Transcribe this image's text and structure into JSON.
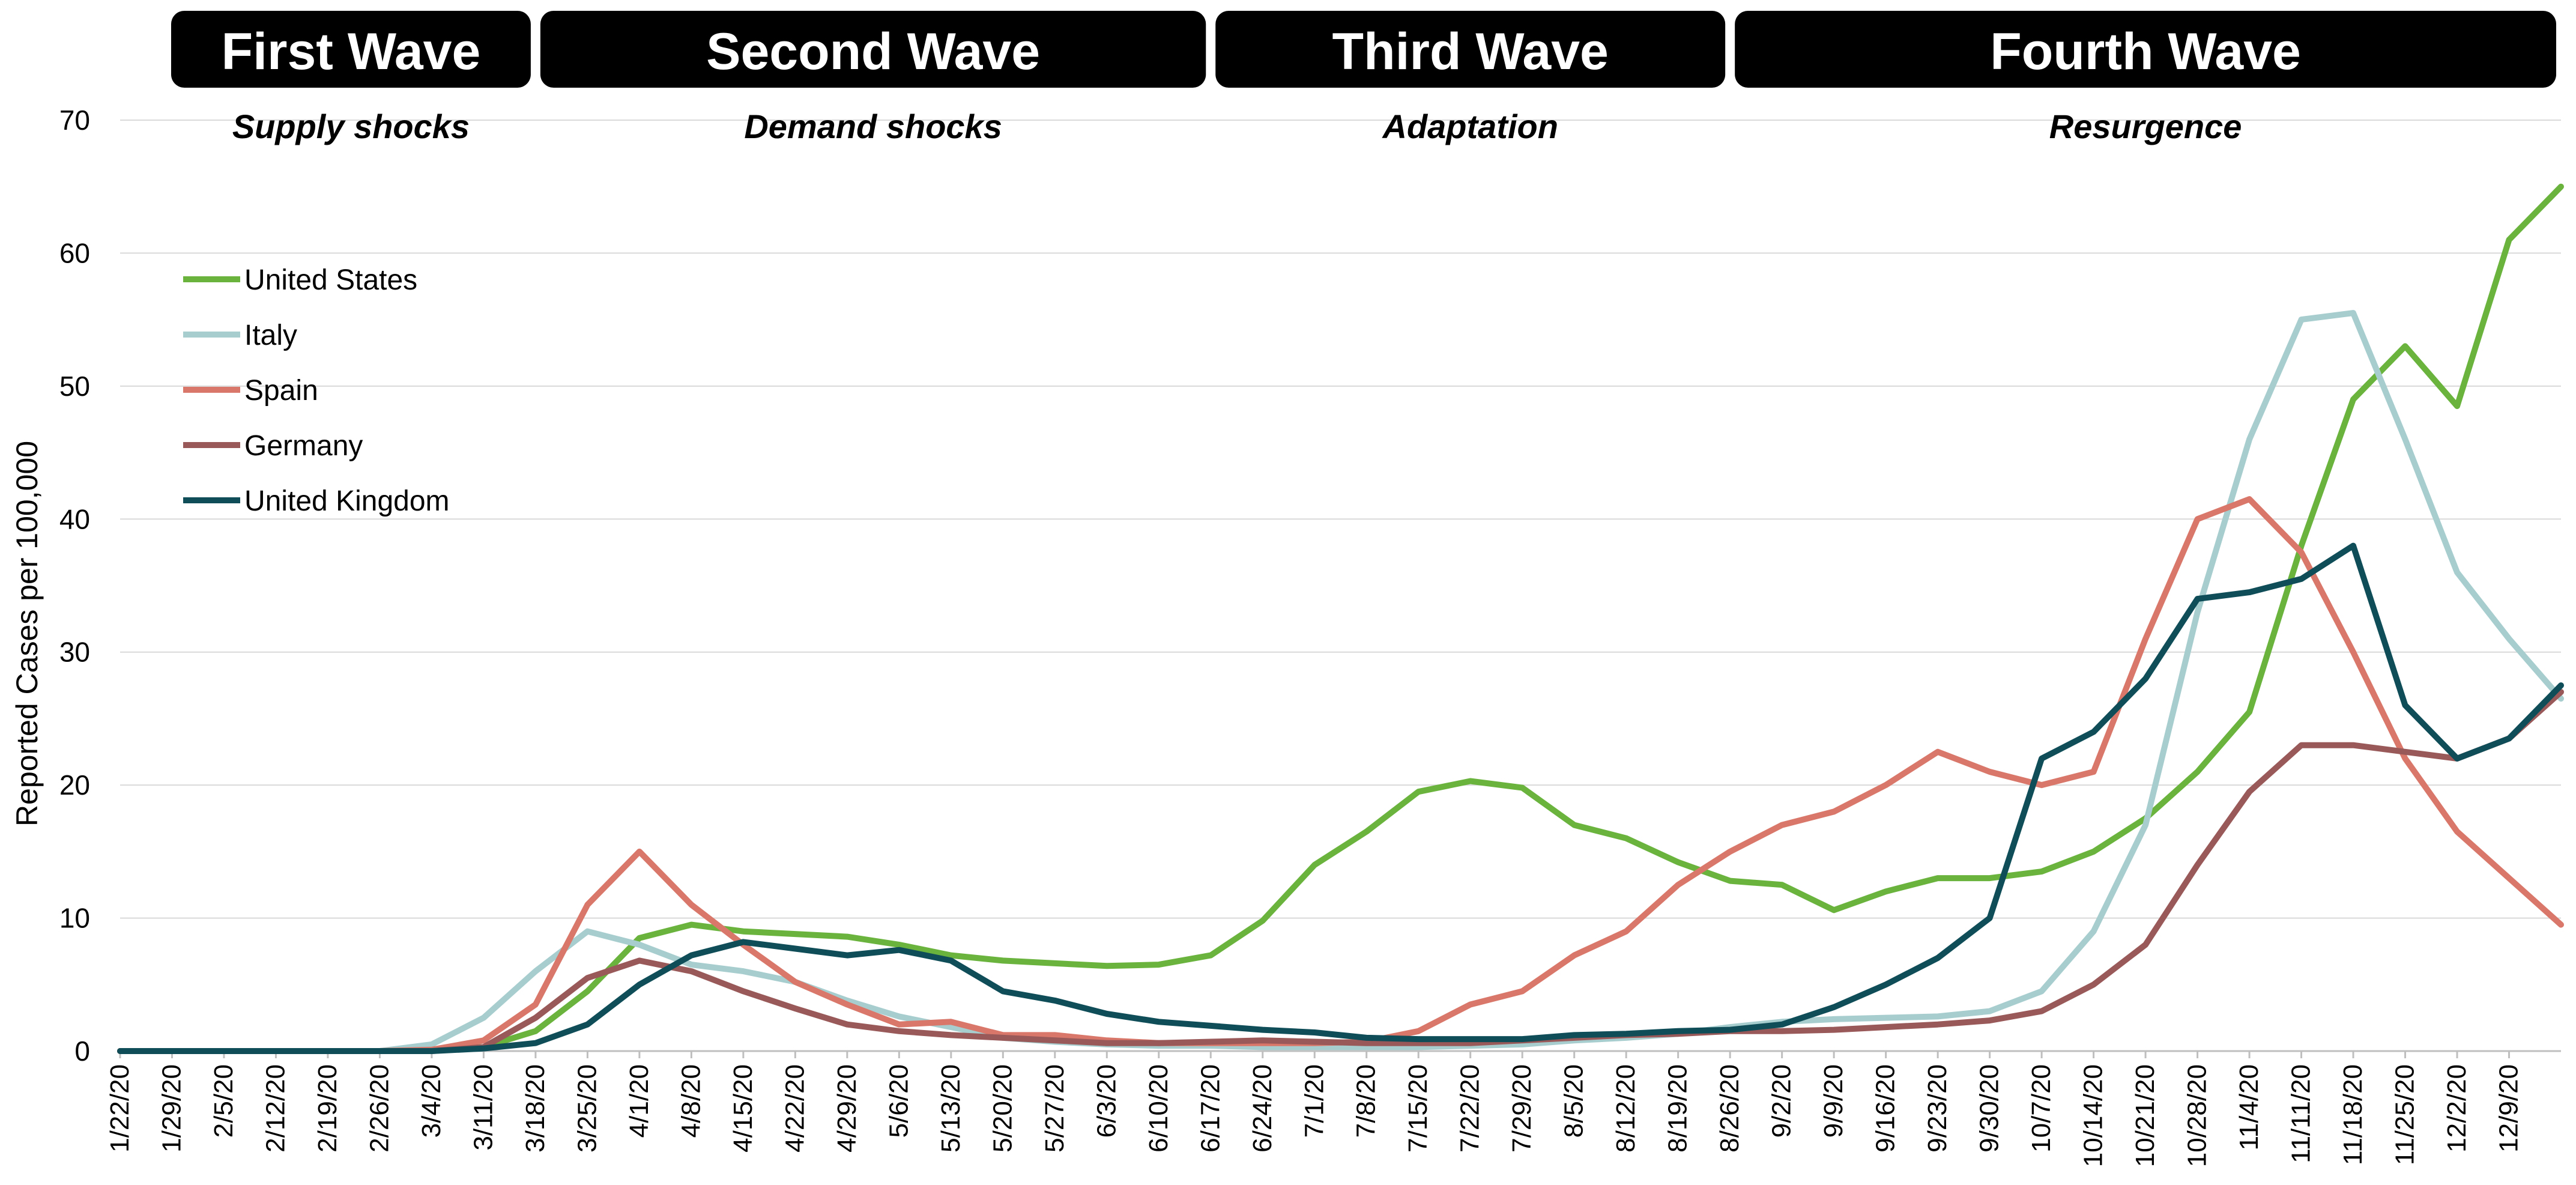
{
  "chart_data": {
    "type": "line",
    "title": "",
    "xlabel": "",
    "ylabel": "Reported Cases per 100,000",
    "ylim": [
      0,
      70
    ],
    "yticks": [
      0,
      10,
      20,
      30,
      40,
      50,
      60,
      70
    ],
    "grid": true,
    "legend_position": "top-left",
    "x": [
      "1/22/20",
      "1/29/20",
      "2/5/20",
      "2/12/20",
      "2/19/20",
      "2/26/20",
      "3/4/20",
      "3/11/20",
      "3/18/20",
      "3/25/20",
      "4/1/20",
      "4/8/20",
      "4/15/20",
      "4/22/20",
      "4/29/20",
      "5/6/20",
      "5/13/20",
      "5/20/20",
      "5/27/20",
      "6/3/20",
      "6/10/20",
      "6/17/20",
      "6/24/20",
      "7/1/20",
      "7/8/20",
      "7/15/20",
      "7/22/20",
      "7/29/20",
      "8/5/20",
      "8/12/20",
      "8/19/20",
      "8/26/20",
      "9/2/20",
      "9/9/20",
      "9/16/20",
      "9/23/20",
      "9/30/20",
      "10/7/20",
      "10/14/20",
      "10/21/20",
      "10/28/20",
      "11/4/20",
      "11/11/20",
      "11/18/20",
      "11/25/20",
      "12/2/20",
      "12/9/20"
    ],
    "x_end": "12/16/20",
    "waves": [
      {
        "title": "First Wave",
        "subtitle": "Supply shocks",
        "start": "1/22/20",
        "end": "3/18/20"
      },
      {
        "title": "Second Wave",
        "subtitle": "Demand shocks",
        "start": "3/18/20",
        "end": "6/17/20"
      },
      {
        "title": "Third Wave",
        "subtitle": "Adaptation",
        "start": "6/17/20",
        "end": "8/26/20"
      },
      {
        "title": "Fourth Wave",
        "subtitle": "Resurgence",
        "start": "8/26/20",
        "end": "12/16/20"
      }
    ],
    "series": [
      {
        "name": "United States",
        "color": "#6ab43e",
        "values": [
          0,
          0,
          0,
          0,
          0,
          0,
          0.1,
          0.3,
          1.5,
          4.5,
          8.5,
          9.5,
          9,
          8.8,
          8.6,
          8,
          7.2,
          6.8,
          6.6,
          6.4,
          6.5,
          7.2,
          9.8,
          14,
          16.5,
          19.5,
          20.3,
          19.8,
          17,
          16,
          14.2,
          12.8,
          12.5,
          10.6,
          12,
          13,
          13,
          13.5,
          15,
          17.5,
          21,
          25.5,
          38,
          49,
          53,
          48.5,
          61
        ],
        "end_value": 65
      },
      {
        "name": "Italy",
        "color": "#a7cdce",
        "values": [
          0,
          0,
          0,
          0,
          0,
          0,
          0.5,
          2.5,
          6,
          9,
          8,
          6.5,
          6,
          5.2,
          3.8,
          2.6,
          1.8,
          1,
          0.7,
          0.5,
          0.4,
          0.4,
          0.3,
          0.3,
          0.3,
          0.3,
          0.4,
          0.5,
          0.8,
          1,
          1.3,
          1.8,
          2.2,
          2.4,
          2.5,
          2.6,
          3,
          4.5,
          9,
          17,
          33,
          46,
          55,
          55.5,
          46,
          36,
          31
        ],
        "end_value": 26.5
      },
      {
        "name": "Spain",
        "color": "#d9786a",
        "values": [
          0,
          0,
          0,
          0,
          0,
          0,
          0.1,
          0.8,
          3.5,
          11,
          15,
          11,
          8,
          5.2,
          3.5,
          2,
          2.2,
          1.2,
          1.2,
          0.8,
          0.6,
          0.6,
          0.6,
          0.6,
          0.7,
          1.5,
          3.5,
          4.5,
          7.2,
          9,
          12.5,
          15,
          17,
          18,
          20,
          22.5,
          21,
          20,
          21,
          31,
          40,
          41.5,
          37.5,
          30,
          22,
          16.5,
          13
        ],
        "end_value": 9.5
      },
      {
        "name": "Germany",
        "color": "#9a5959",
        "values": [
          0,
          0,
          0,
          0,
          0,
          0,
          0,
          0.3,
          2.5,
          5.5,
          6.8,
          6,
          4.5,
          3.2,
          2,
          1.5,
          1.2,
          1,
          0.8,
          0.6,
          0.6,
          0.7,
          0.8,
          0.7,
          0.6,
          0.6,
          0.6,
          0.8,
          1,
          1.2,
          1.3,
          1.5,
          1.5,
          1.6,
          1.8,
          2,
          2.3,
          3,
          5,
          8,
          14,
          19.5,
          23,
          23,
          22.5,
          22,
          23.5
        ],
        "end_value": 27
      },
      {
        "name": "United Kingdom",
        "color": "#0f4d58",
        "values": [
          0,
          0,
          0,
          0,
          0,
          0,
          0,
          0.2,
          0.6,
          2,
          5,
          7.2,
          8.2,
          7.7,
          7.2,
          7.6,
          6.8,
          4.5,
          3.8,
          2.8,
          2.2,
          1.9,
          1.6,
          1.4,
          1,
          0.9,
          0.9,
          0.9,
          1.2,
          1.3,
          1.5,
          1.6,
          2,
          3.3,
          5,
          7,
          10,
          22,
          24,
          28,
          34,
          34.5,
          35.5,
          38,
          26,
          22,
          23.5
        ],
        "end_value": 27.5
      }
    ]
  }
}
